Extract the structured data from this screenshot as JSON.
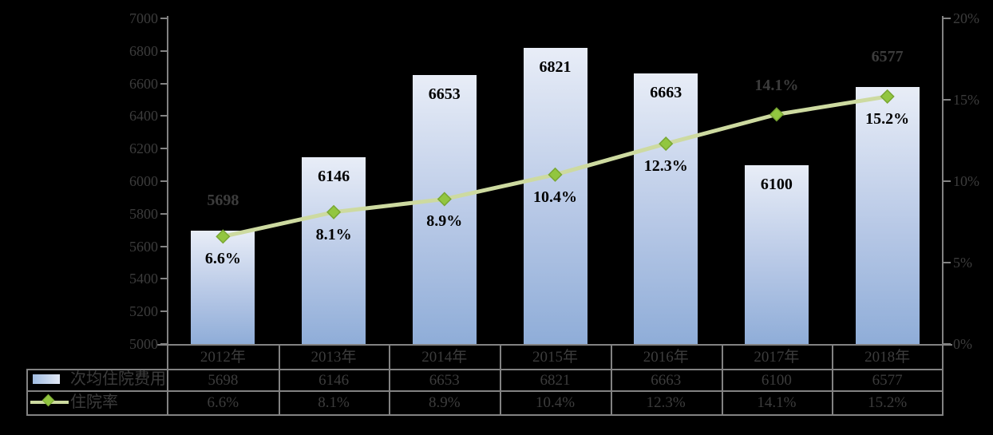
{
  "chart_data": {
    "type": "combo",
    "title": "",
    "categories": [
      "2012年",
      "2013年",
      "2014年",
      "2015年",
      "2016年",
      "2017年",
      "2018年"
    ],
    "series": [
      {
        "name": "次均住院费用",
        "type": "bar",
        "axis": "left",
        "values": [
          5698,
          6146,
          6653,
          6821,
          6663,
          6100,
          6577
        ],
        "labels": [
          "5698",
          "6146",
          "6653",
          "6821",
          "6663",
          "6100",
          "6577"
        ]
      },
      {
        "name": "住院率",
        "type": "line",
        "axis": "right",
        "values": [
          6.6,
          8.1,
          8.9,
          10.4,
          12.3,
          14.1,
          15.2
        ],
        "labels": [
          "6.6%",
          "8.1%",
          "8.9%",
          "10.4%",
          "12.3%",
          "14.1%",
          "15.2%"
        ]
      }
    ],
    "left_axis": {
      "min": 5000,
      "max": 7000,
      "step": 200,
      "tick_labels": [
        "5000",
        "5200",
        "5400",
        "5600",
        "5800",
        "6000",
        "6200",
        "6400",
        "6600",
        "6800",
        "7000"
      ]
    },
    "right_axis": {
      "min": 0,
      "max": 20,
      "step": 5,
      "tick_labels": [
        "0%",
        "5%",
        "10%",
        "15%",
        "20%"
      ]
    },
    "grid": false,
    "legend_position": "data-table-left",
    "data_table": true
  },
  "colors": {
    "background": "#000000",
    "bar_gradient_top": "#e8edf7",
    "bar_gradient_bottom": "#8fadd8",
    "line": "#cddaa0",
    "marker_fill": "#92c640",
    "marker_stroke": "#79a733",
    "axis_line": "#828282",
    "table_border": "#828282",
    "label_on_bar": "#000000",
    "label_on_dark": "#3c3c3c"
  }
}
